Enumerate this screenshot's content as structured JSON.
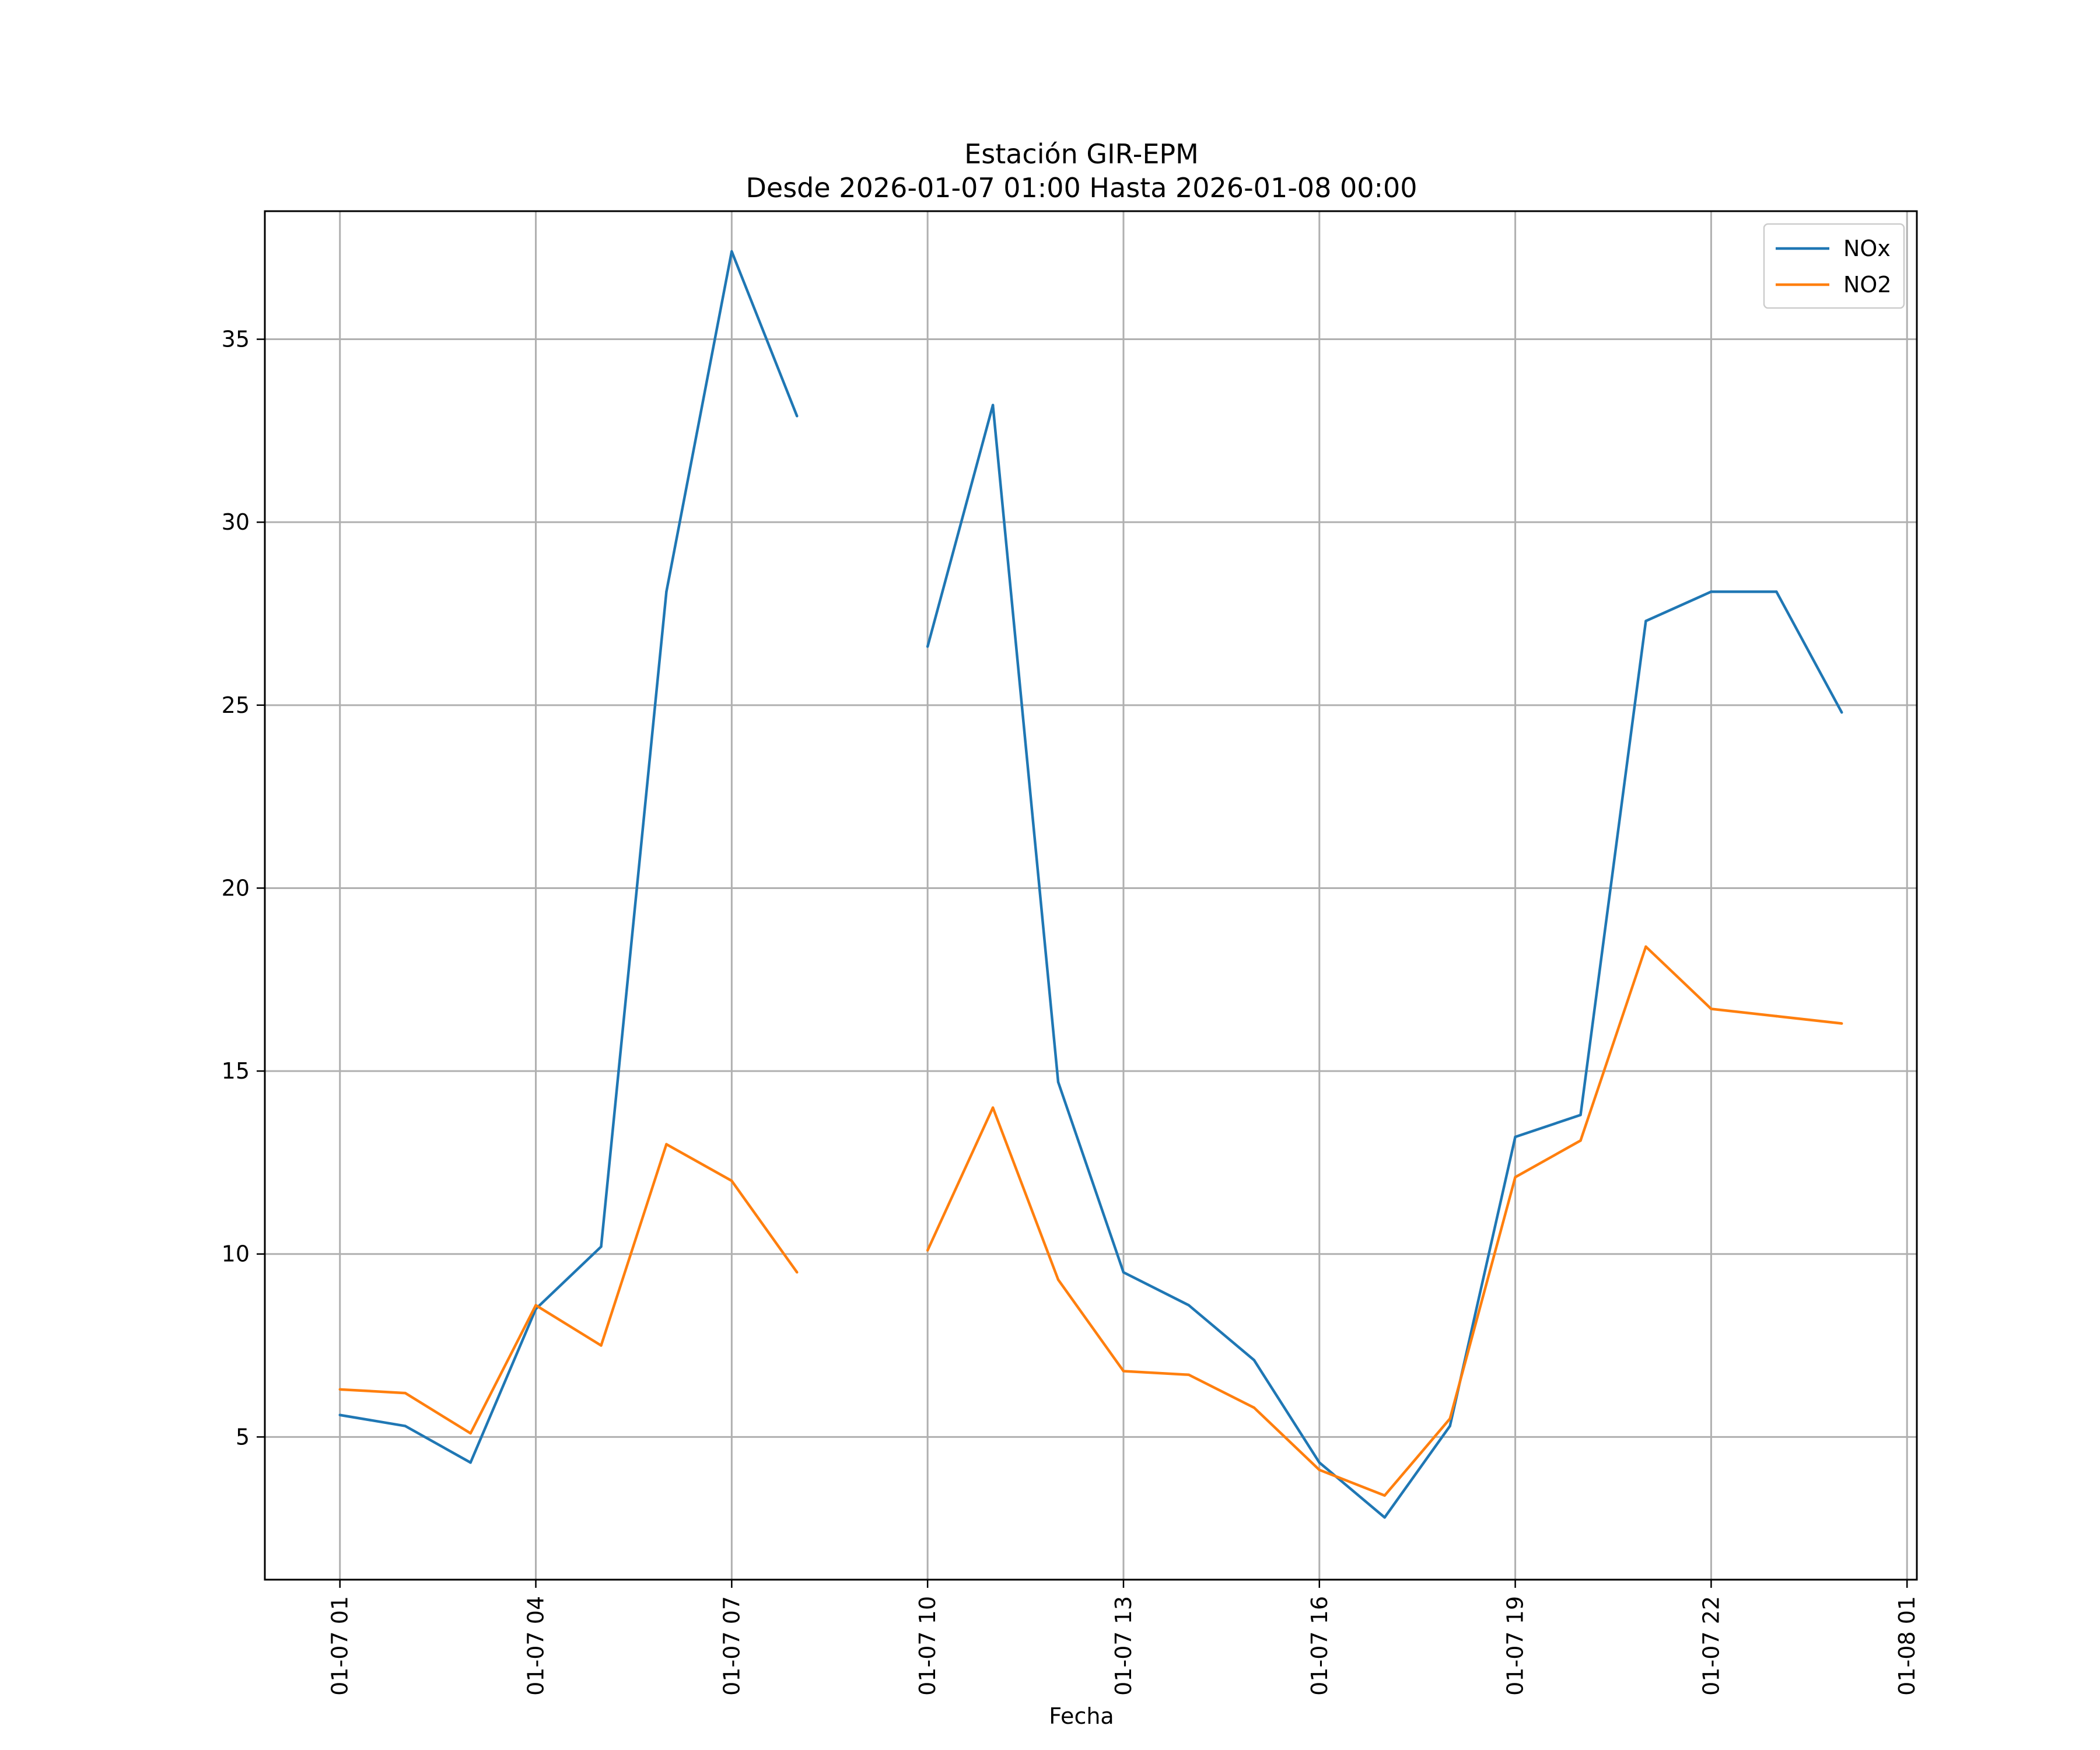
{
  "chart_data": {
    "type": "line",
    "title": "Estación GIR-EPM",
    "subtitle": "Desde 2026-01-07 01:00 Hasta 2026-01-08 00:00",
    "xlabel": "Fecha",
    "ylabel": "",
    "x_start": "2026-01-07 01:00",
    "x_end": "2026-01-08 01:00",
    "ylim": [
      1.1,
      38.5
    ],
    "grid": true,
    "legend_position": "top-right",
    "x_ticks": [
      {
        "at": "2026-01-07 01:00",
        "label": "01-07 01"
      },
      {
        "at": "2026-01-07 04:00",
        "label": "01-07 04"
      },
      {
        "at": "2026-01-07 07:00",
        "label": "01-07 07"
      },
      {
        "at": "2026-01-07 10:00",
        "label": "01-07 10"
      },
      {
        "at": "2026-01-07 13:00",
        "label": "01-07 13"
      },
      {
        "at": "2026-01-07 16:00",
        "label": "01-07 16"
      },
      {
        "at": "2026-01-07 19:00",
        "label": "01-07 19"
      },
      {
        "at": "2026-01-07 22:00",
        "label": "01-07 22"
      },
      {
        "at": "2026-01-08 01:00",
        "label": "01-08 01"
      }
    ],
    "y_ticks": [
      5,
      10,
      15,
      20,
      25,
      30,
      35
    ],
    "x": [
      "2026-01-07 01:00",
      "2026-01-07 02:00",
      "2026-01-07 03:00",
      "2026-01-07 04:00",
      "2026-01-07 05:00",
      "2026-01-07 06:00",
      "2026-01-07 07:00",
      "2026-01-07 08:00",
      "2026-01-07 09:00",
      "2026-01-07 10:00",
      "2026-01-07 11:00",
      "2026-01-07 12:00",
      "2026-01-07 13:00",
      "2026-01-07 14:00",
      "2026-01-07 15:00",
      "2026-01-07 16:00",
      "2026-01-07 17:00",
      "2026-01-07 18:00",
      "2026-01-07 19:00",
      "2026-01-07 20:00",
      "2026-01-07 21:00",
      "2026-01-07 22:00",
      "2026-01-07 23:00",
      "2026-01-08 00:00"
    ],
    "series": [
      {
        "name": "NOx",
        "color": "#1f77b4",
        "values": [
          5.6,
          5.3,
          4.3,
          8.5,
          10.2,
          28.1,
          37.4,
          32.9,
          null,
          26.6,
          33.2,
          14.7,
          9.5,
          8.6,
          7.1,
          4.3,
          2.8,
          5.3,
          13.2,
          13.8,
          27.3,
          28.1,
          28.1,
          24.8
        ]
      },
      {
        "name": "NO2",
        "color": "#ff7f0e",
        "values": [
          6.3,
          6.2,
          5.1,
          8.6,
          7.5,
          13.0,
          12.0,
          9.5,
          null,
          10.1,
          14.0,
          9.3,
          6.8,
          6.7,
          5.8,
          4.1,
          3.4,
          5.5,
          12.1,
          13.1,
          18.4,
          16.7,
          16.5,
          16.3
        ]
      }
    ]
  }
}
